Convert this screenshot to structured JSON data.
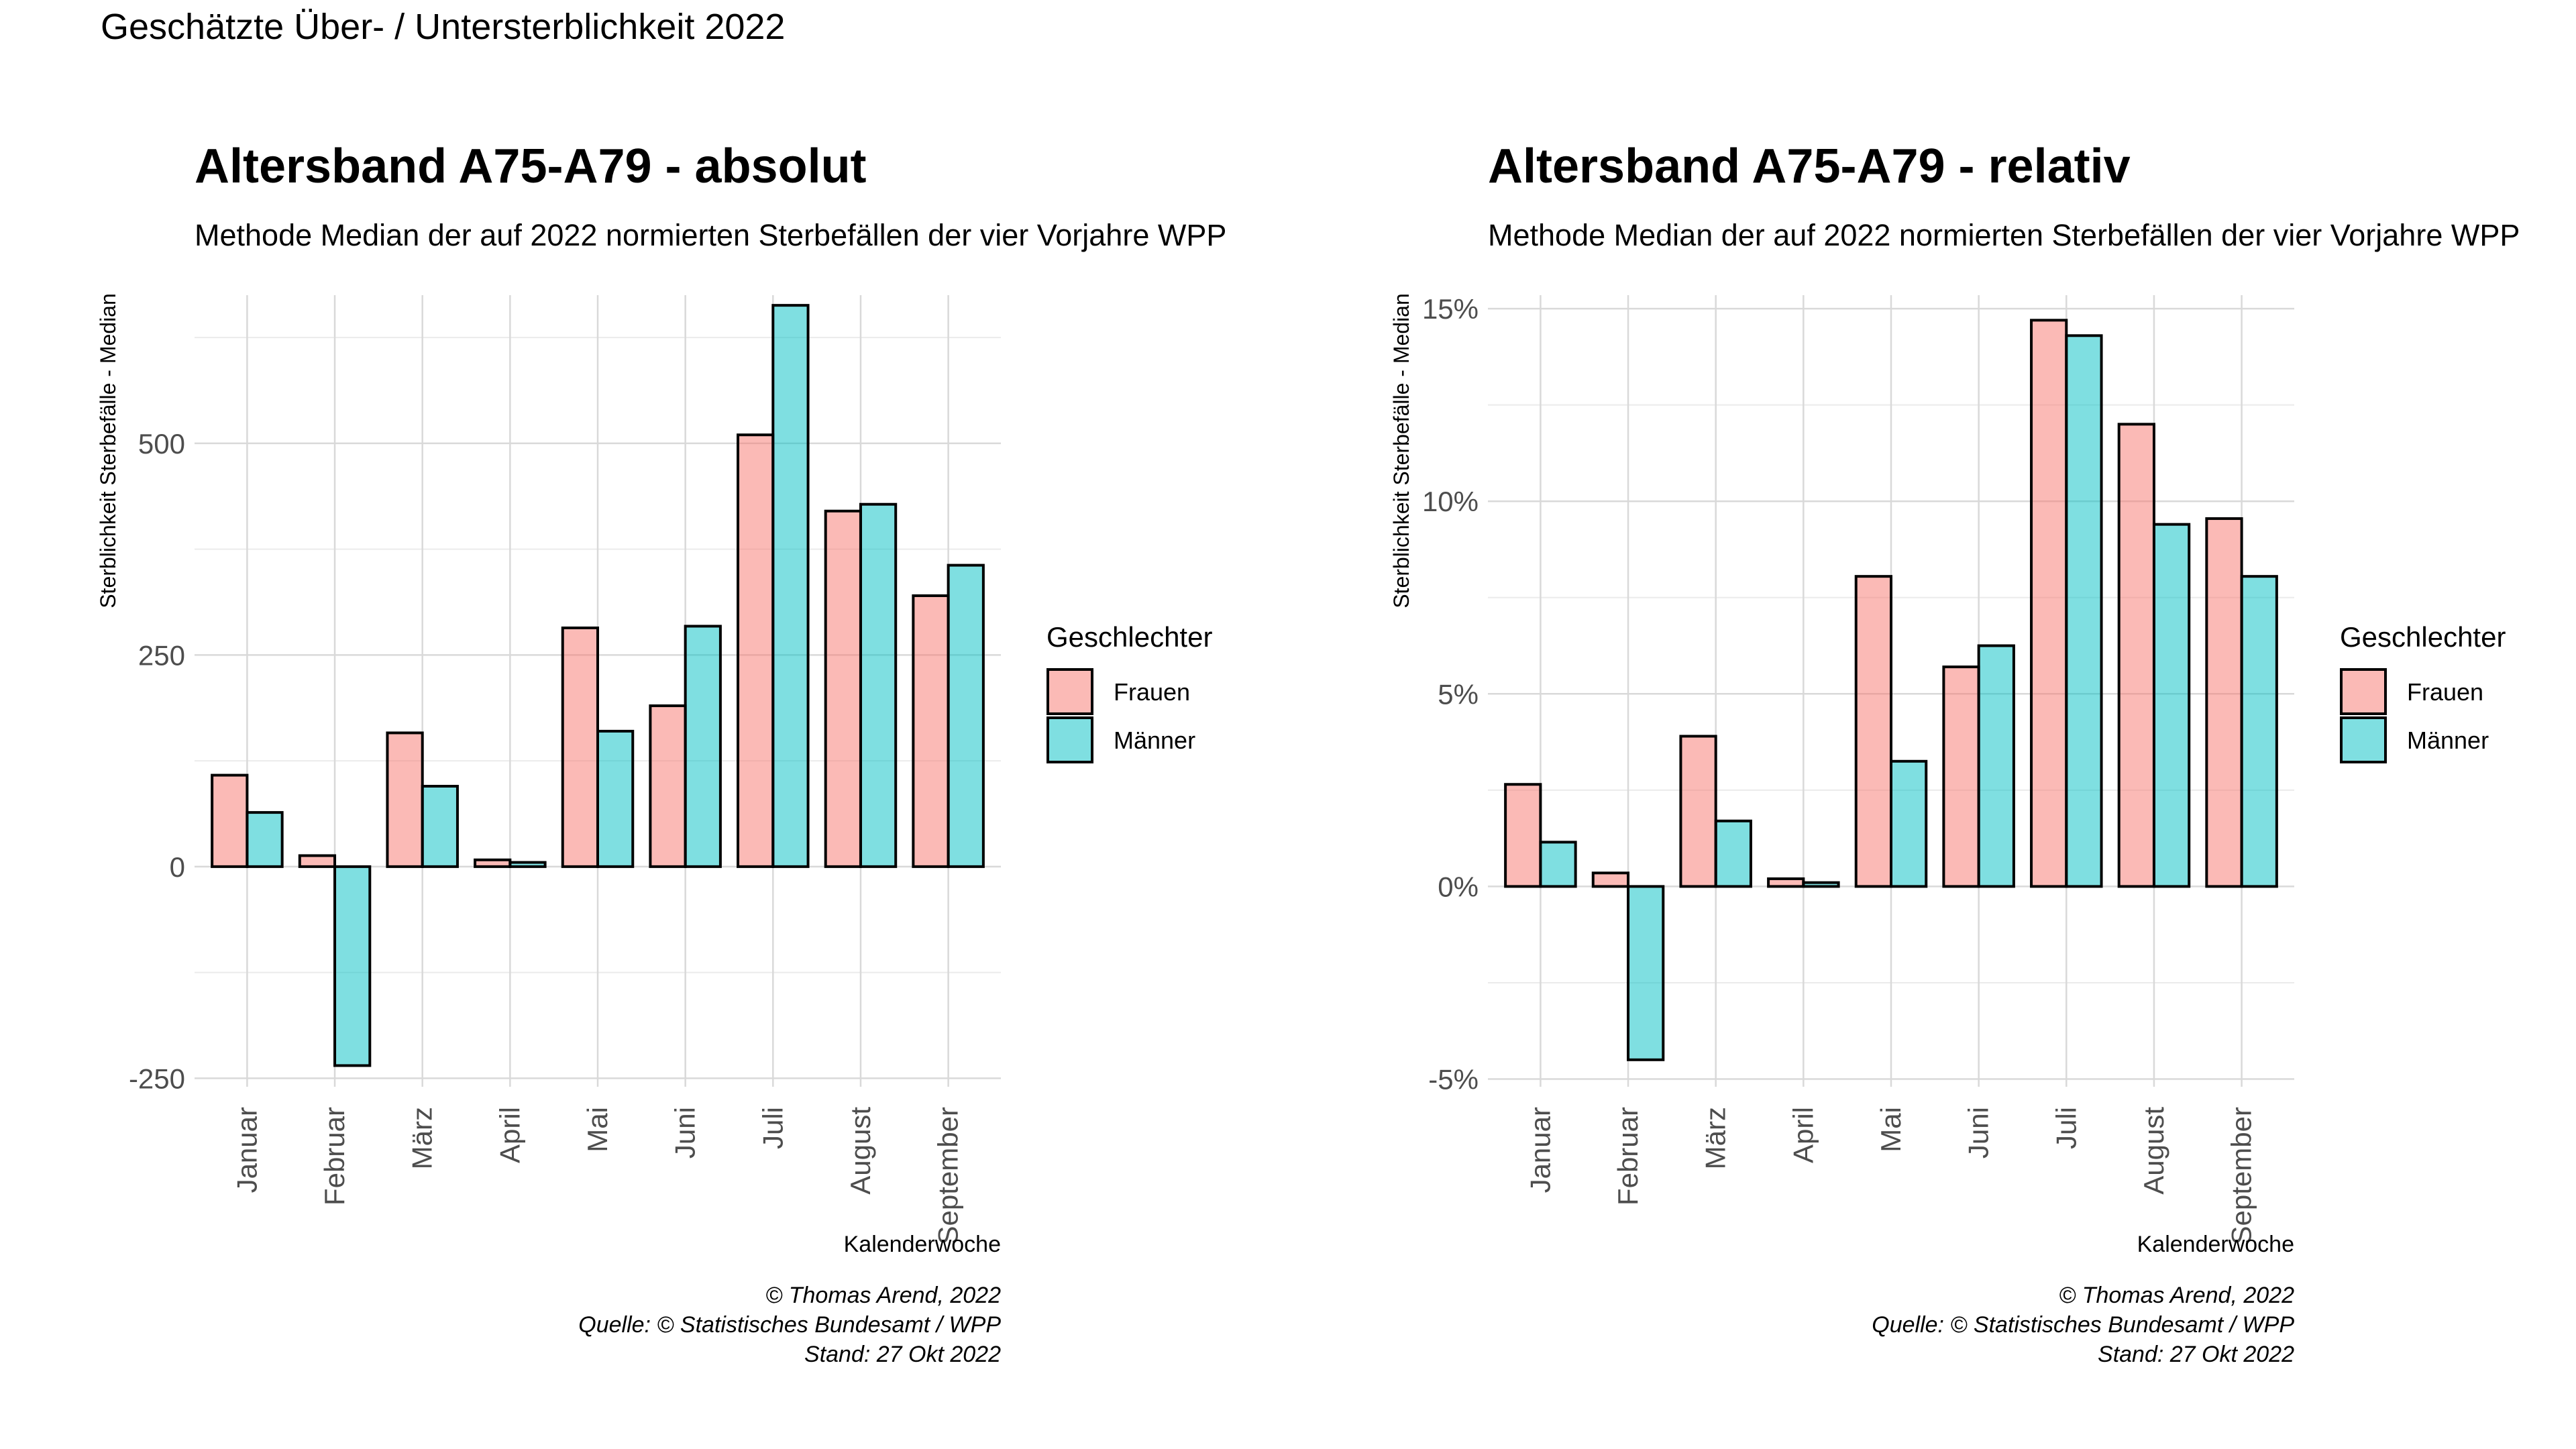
{
  "page": {
    "title": "Geschätzte Über- / Untersterblichkeit 2022"
  },
  "colors": {
    "frauen": "#F8766D",
    "maenner": "#00BFC4",
    "grid": "#d9d9d9",
    "text": "#000000",
    "tick": "#4d4d4d"
  },
  "legend": {
    "title": "Geschlechter",
    "items": [
      "Frauen",
      "Männer"
    ]
  },
  "chart_data": [
    {
      "type": "bar",
      "title": "Altersband A75-A79 - absolut",
      "subtitle": "Methode Median der auf 2022 normierten Sterbefällen der vier Vorjahre WPP",
      "xlabel": "Kalenderwoche",
      "ylabel": "Sterblichkeit Sterbefälle - Median",
      "categories": [
        "Januar",
        "Februar",
        "März",
        "April",
        "Mai",
        "Juni",
        "Juli",
        "August",
        "September"
      ],
      "series": [
        {
          "name": "Frauen",
          "values": [
            108,
            13,
            158,
            8,
            282,
            190,
            510,
            420,
            320
          ]
        },
        {
          "name": "Männer",
          "values": [
            64,
            -235,
            95,
            5,
            160,
            284,
            663,
            428,
            356
          ]
        }
      ],
      "ylim": [
        -260,
        675
      ],
      "yticks": [
        -250,
        0,
        250,
        500
      ],
      "ytick_labels": [
        "-250",
        "0",
        "250",
        "500"
      ],
      "grid": true,
      "legend_position": "right",
      "caption": [
        "© Thomas Arend, 2022",
        "Quelle: © Statistisches Bundesamt / WPP",
        "Stand: 27 Okt 2022"
      ]
    },
    {
      "type": "bar",
      "title": "Altersband A75-A79 - relativ",
      "subtitle": "Methode Median der auf 2022 normierten Sterbefällen der vier Vorjahre WPP",
      "xlabel": "Kalenderwoche",
      "ylabel": "Sterblichkeit Sterbefälle - Median",
      "categories": [
        "Januar",
        "Februar",
        "März",
        "April",
        "Mai",
        "Juni",
        "Juli",
        "August",
        "September"
      ],
      "series": [
        {
          "name": "Frauen",
          "values": [
            2.65,
            0.35,
            3.9,
            0.2,
            8.05,
            5.7,
            14.7,
            12.0,
            9.55
          ]
        },
        {
          "name": "Männer",
          "values": [
            1.15,
            -4.5,
            1.7,
            0.1,
            3.25,
            6.25,
            14.3,
            9.4,
            8.05
          ]
        }
      ],
      "ylim": [
        -5.2,
        15.35
      ],
      "yticks": [
        -5,
        0,
        5,
        10,
        15
      ],
      "ytick_labels": [
        "-5%",
        "0%",
        "5%",
        "10%",
        "15%"
      ],
      "grid": true,
      "legend_position": "right",
      "caption": [
        "© Thomas Arend, 2022",
        "Quelle: © Statistisches Bundesamt / WPP",
        "Stand: 27 Okt 2022"
      ]
    }
  ]
}
